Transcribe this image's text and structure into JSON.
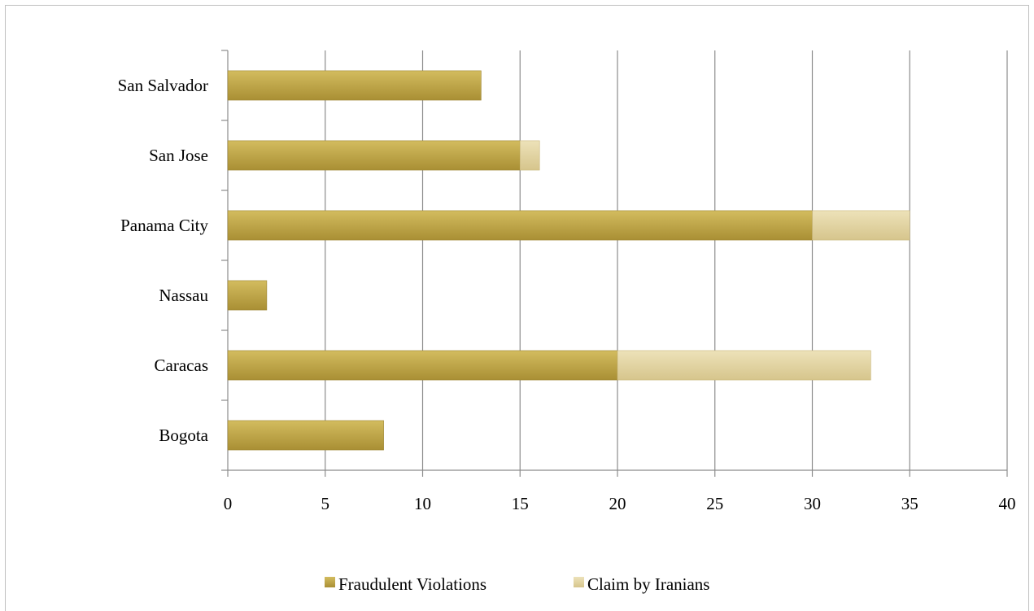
{
  "chart_data": {
    "type": "bar",
    "orientation": "horizontal",
    "stacked": true,
    "categories": [
      "Bogota",
      "Caracas",
      "Nassau",
      "Panama City",
      "San Jose",
      "San Salvador"
    ],
    "series": [
      {
        "name": "Fraudulent Violations",
        "values": [
          8,
          20,
          2,
          30,
          15,
          13
        ],
        "color": "#c2a74c"
      },
      {
        "name": "Claim by Iranians",
        "values": [
          0,
          13,
          0,
          5,
          1,
          0
        ],
        "color": "#e2d39f"
      }
    ],
    "xlim": [
      0,
      40
    ],
    "xticks": [
      "0",
      "5",
      "10",
      "15",
      "20",
      "25",
      "30",
      "35",
      "40"
    ],
    "grid": "vertical",
    "legend_position": "bottom"
  }
}
